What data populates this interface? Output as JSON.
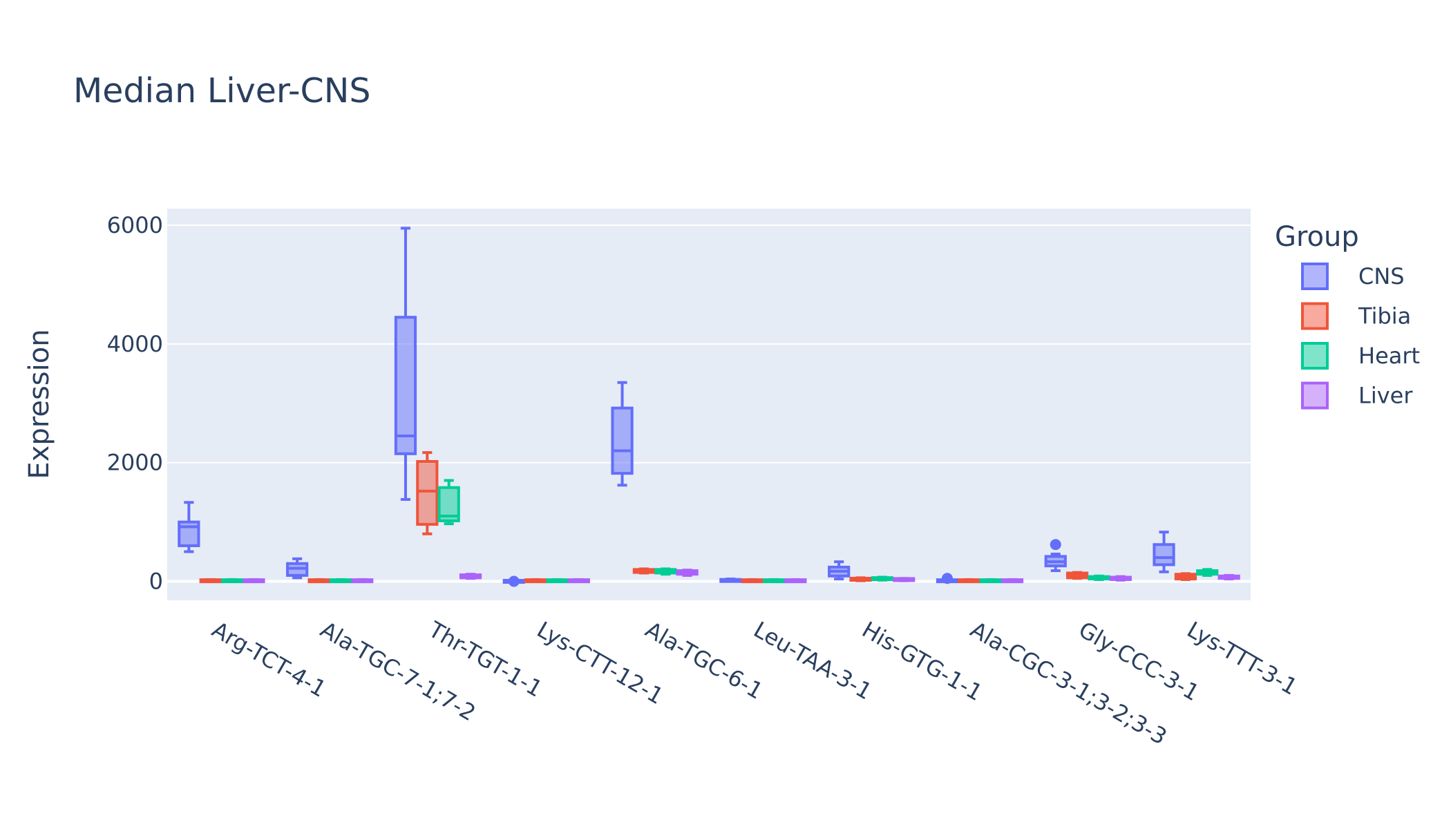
{
  "chart_data": {
    "type": "box",
    "title": "Median Liver-CNS",
    "xlabel": "",
    "ylabel": "Expression",
    "ylim": [
      -320,
      6280
    ],
    "yticks": [
      0,
      2000,
      4000,
      6000
    ],
    "ytick_labels": [
      "0",
      "2000",
      "4000",
      "6000"
    ],
    "grid": true,
    "legend": {
      "title": "Group",
      "position": "right"
    },
    "categories": [
      "Arg-TCT-4-1",
      "Ala-TGC-7-1;7-2",
      "Thr-TGT-1-1",
      "Lys-CTT-12-1",
      "Ala-TGC-6-1",
      "Leu-TAA-3-1",
      "His-GTG-1-1",
      "Ala-CGC-3-1;3-2;3-3",
      "Gly-CCC-3-1",
      "Lys-TTT-3-1"
    ],
    "series": [
      {
        "name": "CNS",
        "color": "#636efa",
        "boxes": [
          {
            "min": 500,
            "q1": 600,
            "median": 920,
            "q3": 1000,
            "max": 1330
          },
          {
            "min": 60,
            "q1": 100,
            "median": 220,
            "q3": 300,
            "max": 380
          },
          {
            "min": 1380,
            "q1": 2150,
            "median": 2450,
            "q3": 4450,
            "max": 5950
          },
          {
            "min": 0,
            "q1": 0,
            "median": 0,
            "q3": 0,
            "max": 0,
            "outliers": [
              0
            ]
          },
          {
            "min": 1620,
            "q1": 1820,
            "median": 2200,
            "q3": 2920,
            "max": 3350
          },
          {
            "min": 0,
            "q1": 0,
            "median": 10,
            "q3": 30,
            "max": 40
          },
          {
            "min": 40,
            "q1": 90,
            "median": 170,
            "q3": 240,
            "max": 330
          },
          {
            "min": 0,
            "q1": 0,
            "median": 10,
            "q3": 20,
            "max": 30,
            "outliers": [
              50
            ]
          },
          {
            "min": 180,
            "q1": 260,
            "median": 330,
            "q3": 420,
            "max": 460,
            "outliers": [
              620
            ]
          },
          {
            "min": 160,
            "q1": 280,
            "median": 400,
            "q3": 620,
            "max": 830
          }
        ]
      },
      {
        "name": "Tibia",
        "color": "#ef553b",
        "boxes": [
          {
            "min": 0,
            "q1": 0,
            "median": 10,
            "q3": 20,
            "max": 30
          },
          {
            "min": 0,
            "q1": 0,
            "median": 10,
            "q3": 20,
            "max": 30
          },
          {
            "min": 800,
            "q1": 960,
            "median": 1520,
            "q3": 2020,
            "max": 2170
          },
          {
            "min": 0,
            "q1": 0,
            "median": 10,
            "q3": 20,
            "max": 30
          },
          {
            "min": 140,
            "q1": 150,
            "median": 170,
            "q3": 200,
            "max": 210
          },
          {
            "min": 0,
            "q1": 0,
            "median": 10,
            "q3": 20,
            "max": 30
          },
          {
            "min": 10,
            "q1": 20,
            "median": 30,
            "q3": 50,
            "max": 60
          },
          {
            "min": 0,
            "q1": 0,
            "median": 10,
            "q3": 20,
            "max": 30
          },
          {
            "min": 50,
            "q1": 60,
            "median": 100,
            "q3": 140,
            "max": 150
          },
          {
            "min": 30,
            "q1": 40,
            "median": 80,
            "q3": 120,
            "max": 130
          }
        ]
      },
      {
        "name": "Heart",
        "color": "#00cc96",
        "boxes": [
          {
            "min": 0,
            "q1": 0,
            "median": 10,
            "q3": 20,
            "max": 30
          },
          {
            "min": 0,
            "q1": 0,
            "median": 10,
            "q3": 20,
            "max": 30
          },
          {
            "min": 970,
            "q1": 1020,
            "median": 1100,
            "q3": 1580,
            "max": 1700
          },
          {
            "min": 0,
            "q1": 0,
            "median": 10,
            "q3": 20,
            "max": 30
          },
          {
            "min": 120,
            "q1": 140,
            "median": 170,
            "q3": 200,
            "max": 210
          },
          {
            "min": 0,
            "q1": 0,
            "median": 10,
            "q3": 20,
            "max": 30
          },
          {
            "min": 20,
            "q1": 30,
            "median": 40,
            "q3": 60,
            "max": 70
          },
          {
            "min": 0,
            "q1": 0,
            "median": 10,
            "q3": 20,
            "max": 30
          },
          {
            "min": 30,
            "q1": 40,
            "median": 60,
            "q3": 80,
            "max": 90
          },
          {
            "min": 100,
            "q1": 120,
            "median": 150,
            "q3": 180,
            "max": 200
          }
        ]
      },
      {
        "name": "Liver",
        "color": "#ab63fa",
        "boxes": [
          {
            "min": 0,
            "q1": 0,
            "median": 10,
            "q3": 20,
            "max": 30
          },
          {
            "min": 0,
            "q1": 0,
            "median": 10,
            "q3": 20,
            "max": 30
          },
          {
            "min": 50,
            "q1": 60,
            "median": 90,
            "q3": 110,
            "max": 120
          },
          {
            "min": 0,
            "q1": 0,
            "median": 10,
            "q3": 20,
            "max": 30
          },
          {
            "min": 100,
            "q1": 120,
            "median": 160,
            "q3": 180,
            "max": 190
          },
          {
            "min": 0,
            "q1": 0,
            "median": 10,
            "q3": 20,
            "max": 30
          },
          {
            "min": 10,
            "q1": 20,
            "median": 30,
            "q3": 40,
            "max": 50
          },
          {
            "min": 0,
            "q1": 0,
            "median": 10,
            "q3": 20,
            "max": 30
          },
          {
            "min": 20,
            "q1": 30,
            "median": 50,
            "q3": 70,
            "max": 80
          },
          {
            "min": 40,
            "q1": 50,
            "median": 70,
            "q3": 90,
            "max": 100
          }
        ]
      }
    ]
  }
}
